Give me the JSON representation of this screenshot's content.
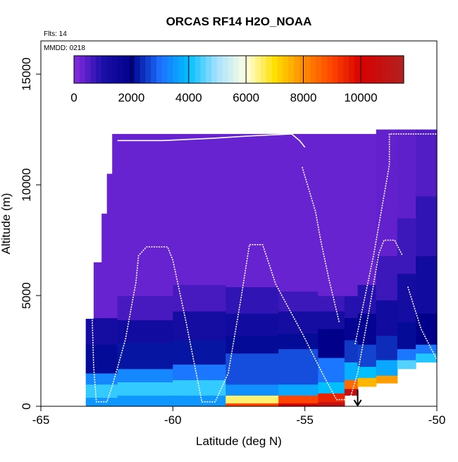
{
  "chart_data": {
    "type": "heatmap",
    "title": "ORCAS RF14 H2O_NOAA",
    "annotations": {
      "flights": "Flts: 14",
      "date": "MMDD: 0218"
    },
    "xlabel": "Latitude (deg N)",
    "ylabel": "Altitude (m)",
    "xlim": [
      -65,
      -50
    ],
    "ylim": [
      0,
      16500
    ],
    "x_ticks": [
      -65,
      -60,
      -55,
      -50
    ],
    "x_tick_labels": [
      "-65",
      "-60",
      "-55",
      "-50"
    ],
    "y_ticks": [
      0,
      5000,
      10000,
      15000
    ],
    "y_tick_labels": [
      "0",
      "5000",
      "10000",
      "15000"
    ],
    "colorbar": {
      "range": [
        0,
        11500
      ],
      "ticks": [
        0,
        2000,
        4000,
        6000,
        8000,
        10000
      ],
      "tick_labels": [
        "0",
        "2000",
        "4000",
        "6000",
        "8000",
        "10000"
      ],
      "stops": [
        [
          0,
          "#8a2be2"
        ],
        [
          1000,
          "#1a0fa8"
        ],
        [
          2000,
          "#00008b"
        ],
        [
          3000,
          "#1e6fff"
        ],
        [
          4000,
          "#00bfff"
        ],
        [
          5000,
          "#a8e2ff"
        ],
        [
          6000,
          "#ffffe0"
        ],
        [
          7000,
          "#ffe000"
        ],
        [
          8000,
          "#ff8c00"
        ],
        [
          9000,
          "#ff4500"
        ],
        [
          10000,
          "#d80000"
        ],
        [
          11500,
          "#b22222"
        ]
      ]
    },
    "grid": false,
    "columns": [
      {
        "x": [
          -63.3,
          -63.0
        ],
        "top": 3950,
        "layers": [
          [
            0,
            400,
            3500
          ],
          [
            400,
            1000,
            4300
          ],
          [
            1000,
            1500,
            3300
          ],
          [
            1500,
            2800,
            2100
          ],
          [
            2800,
            3950,
            1200
          ]
        ]
      },
      {
        "x": [
          -63.0,
          -62.7
        ],
        "top": 6500,
        "layers": [
          [
            0,
            400,
            3500
          ],
          [
            400,
            1000,
            4300
          ],
          [
            1000,
            1500,
            3300
          ],
          [
            1500,
            2800,
            2100
          ],
          [
            2800,
            4000,
            1200
          ],
          [
            4000,
            6500,
            300
          ]
        ]
      },
      {
        "x": [
          -62.7,
          -62.5
        ],
        "top": 8700,
        "layers": [
          [
            0,
            400,
            3500
          ],
          [
            400,
            1000,
            4300
          ],
          [
            1000,
            1500,
            3300
          ],
          [
            1500,
            2800,
            2100
          ],
          [
            2800,
            4000,
            1200
          ],
          [
            4000,
            8700,
            300
          ]
        ]
      },
      {
        "x": [
          -62.5,
          -62.3
        ],
        "top": 10500,
        "layers": [
          [
            0,
            400,
            3500
          ],
          [
            400,
            1000,
            4300
          ],
          [
            1000,
            1500,
            3300
          ],
          [
            1500,
            2800,
            2100
          ],
          [
            2800,
            4000,
            1200
          ],
          [
            4000,
            10500,
            300
          ]
        ]
      },
      {
        "x": [
          -62.3,
          -62.1
        ],
        "top": 12300,
        "layers": [
          [
            0,
            400,
            3500
          ],
          [
            400,
            1000,
            4300
          ],
          [
            1000,
            1500,
            3300
          ],
          [
            1500,
            2800,
            2100
          ],
          [
            2800,
            4000,
            1200
          ],
          [
            4000,
            12300,
            300
          ]
        ]
      },
      {
        "x": [
          -62.1,
          -60.0
        ],
        "top": 12300,
        "layers": [
          [
            0,
            500,
            3500
          ],
          [
            500,
            1100,
            4300
          ],
          [
            1100,
            1700,
            3300
          ],
          [
            1700,
            2900,
            2200
          ],
          [
            2900,
            3900,
            1300
          ],
          [
            3900,
            5000,
            600
          ],
          [
            5000,
            12300,
            300
          ]
        ]
      },
      {
        "x": [
          -60.0,
          -58.0
        ],
        "top": 12300,
        "layers": [
          [
            0,
            500,
            3500
          ],
          [
            500,
            1200,
            4300
          ],
          [
            1200,
            1900,
            3100
          ],
          [
            1900,
            3000,
            2200
          ],
          [
            3000,
            4300,
            1200
          ],
          [
            4300,
            5500,
            600
          ],
          [
            5500,
            12300,
            300
          ]
        ]
      },
      {
        "x": [
          -58.0,
          -56.0
        ],
        "top": 12300,
        "layers": [
          [
            0,
            150,
            9000
          ],
          [
            150,
            500,
            6500
          ],
          [
            500,
            1000,
            3400
          ],
          [
            1000,
            2400,
            2700
          ],
          [
            2400,
            3200,
            2100
          ],
          [
            3200,
            4200,
            1300
          ],
          [
            4200,
            5400,
            800
          ],
          [
            5400,
            12300,
            300
          ]
        ]
      },
      {
        "x": [
          -56.0,
          -54.5
        ],
        "top": 12300,
        "layers": [
          [
            0,
            150,
            10200
          ],
          [
            150,
            500,
            9000
          ],
          [
            500,
            1000,
            3700
          ],
          [
            1000,
            2600,
            2700
          ],
          [
            2600,
            3300,
            2100
          ],
          [
            3300,
            4300,
            1200
          ],
          [
            4300,
            5200,
            700
          ],
          [
            5200,
            12300,
            300
          ]
        ]
      },
      {
        "x": [
          -54.5,
          -53.5
        ],
        "top": 12300,
        "layers": [
          [
            0,
            200,
            10800
          ],
          [
            200,
            600,
            9500
          ],
          [
            600,
            1100,
            4000
          ],
          [
            1100,
            2200,
            3100
          ],
          [
            2200,
            3500,
            2000
          ],
          [
            3500,
            4300,
            1200
          ],
          [
            4300,
            5000,
            700
          ],
          [
            5000,
            12300,
            300
          ]
        ]
      },
      {
        "x": [
          -53.5,
          -53.0
        ],
        "top": 12300,
        "layers": [
          [
            500,
            800,
            10600
          ],
          [
            800,
            1200,
            8500
          ],
          [
            1200,
            2000,
            3800
          ],
          [
            2000,
            3000,
            2500
          ],
          [
            3000,
            4000,
            1800
          ],
          [
            4000,
            5000,
            900
          ],
          [
            5000,
            12300,
            300
          ]
        ]
      },
      {
        "x": [
          -53.0,
          -52.3
        ],
        "top": 12300,
        "layers": [
          [
            900,
            1300,
            7500
          ],
          [
            1300,
            1800,
            4000
          ],
          [
            1800,
            2800,
            2600
          ],
          [
            2800,
            4200,
            1800
          ],
          [
            4200,
            5500,
            900
          ],
          [
            5500,
            12300,
            300
          ]
        ]
      },
      {
        "x": [
          -52.3,
          -51.5
        ],
        "top": 12500,
        "layers": [
          [
            1050,
            1400,
            7800
          ],
          [
            1400,
            2100,
            3700
          ],
          [
            2100,
            3200,
            2400
          ],
          [
            3200,
            4800,
            1300
          ],
          [
            4800,
            6800,
            700
          ],
          [
            6800,
            12500,
            350
          ]
        ]
      },
      {
        "x": [
          -51.5,
          -50.8
        ],
        "top": 12500,
        "layers": [
          [
            1700,
            2100,
            4500
          ],
          [
            2100,
            2600,
            3100
          ],
          [
            2600,
            3800,
            2100
          ],
          [
            3800,
            6000,
            1200
          ],
          [
            6000,
            8500,
            700
          ],
          [
            8500,
            12500,
            400
          ]
        ]
      },
      {
        "x": [
          -50.8,
          -50.0
        ],
        "top": 12500,
        "layers": [
          [
            2000,
            2400,
            4200
          ],
          [
            2400,
            2800,
            3100
          ],
          [
            2800,
            4200,
            2000
          ],
          [
            4200,
            6800,
            1300
          ],
          [
            6800,
            9500,
            800
          ],
          [
            9500,
            12500,
            500
          ]
        ]
      }
    ],
    "flight_track": [
      [
        -63.1,
        5800
      ],
      [
        -63.0,
        1800
      ],
      [
        -62.9,
        200
      ],
      [
        -62.5,
        200
      ],
      [
        -62.3,
        900
      ],
      [
        -61.8,
        3000
      ],
      [
        -61.4,
        5600
      ],
      [
        -61.3,
        6800
      ],
      [
        -61.0,
        7200
      ],
      [
        -60.2,
        7200
      ],
      [
        -60.0,
        6600
      ],
      [
        -59.5,
        3800
      ],
      [
        -58.9,
        200
      ],
      [
        -58.4,
        200
      ],
      [
        -57.9,
        1500
      ],
      [
        -57.4,
        5000
      ],
      [
        -57.1,
        7300
      ],
      [
        -56.6,
        7300
      ],
      [
        -56.1,
        5500
      ],
      [
        -55.1,
        3300
      ],
      [
        -54.3,
        1400
      ],
      [
        -53.8,
        300
      ],
      [
        -53.3,
        300
      ],
      [
        -53.0,
        1500
      ],
      [
        -52.6,
        4100
      ],
      [
        -52.2,
        6900
      ],
      [
        -52.0,
        7500
      ],
      [
        -51.6,
        7500
      ],
      [
        -51.3,
        6800
      ]
    ],
    "flight_track_2": [
      [
        -51.1,
        5400
      ],
      [
        -50.6,
        3500
      ],
      [
        -50.0,
        2100
      ]
    ],
    "flight_track_3": [
      [
        -55.1,
        10800
      ],
      [
        -54.6,
        8800
      ],
      [
        -54.4,
        7500
      ],
      [
        -54.1,
        5800
      ],
      [
        -53.7,
        3800
      ]
    ],
    "flight_track_4": [
      [
        -53.1,
        2800
      ],
      [
        -52.4,
        6800
      ],
      [
        -51.8,
        10900
      ],
      [
        -51.8,
        12300
      ],
      [
        -50.0,
        12300
      ]
    ],
    "flight_track_5": [
      [
        -62.1,
        12000
      ],
      [
        -61.3,
        12000
      ],
      [
        -60.4,
        12000
      ],
      [
        -58.5,
        12100
      ],
      [
        -57.2,
        12200
      ],
      [
        -55.5,
        12300
      ],
      [
        -55.2,
        12000
      ],
      [
        -55.0,
        11700
      ]
    ],
    "arrow": {
      "x": -53.0,
      "y_from": 750,
      "y_to": 0
    }
  }
}
